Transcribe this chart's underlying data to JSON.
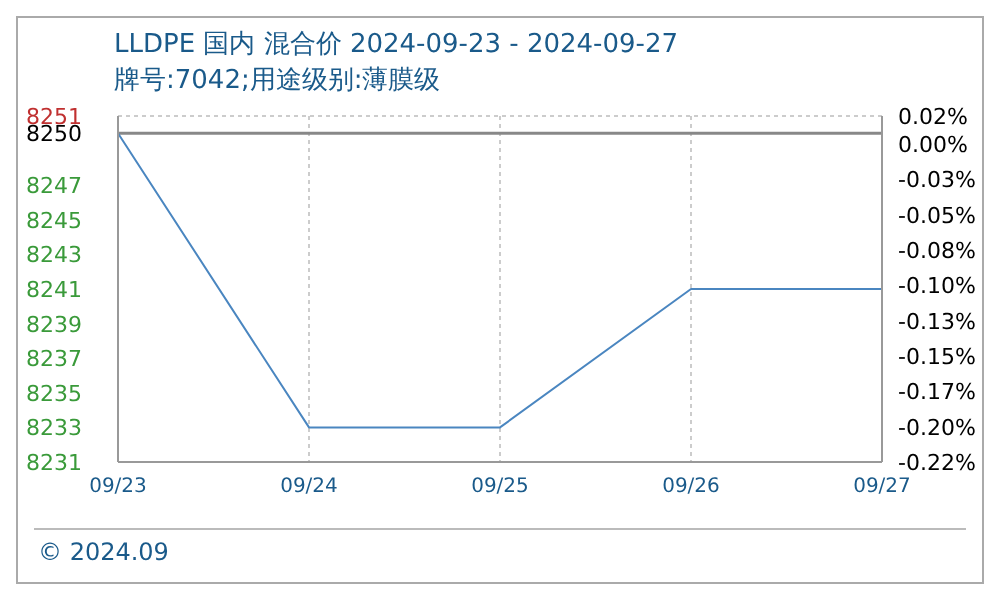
{
  "chart_data": {
    "type": "line",
    "title": "LLDPE 国内 混合价 2024-09-23 - 2024-09-27",
    "subtitle": "牌号:7042;用途级别:薄膜级",
    "categories": [
      "09/23",
      "09/24",
      "09/25",
      "09/26",
      "09/27"
    ],
    "series": [
      {
        "color": "#4a86c0",
        "values": [
          8250,
          8233,
          8233,
          8241,
          8241
        ]
      }
    ],
    "ylim": [
      8231,
      8251
    ],
    "yticks": [
      8251,
      8250,
      8247,
      8245,
      8243,
      8241,
      8239,
      8237,
      8235,
      8233,
      8231
    ],
    "y2lim": [
      -0.225,
      0.02
    ],
    "y2ticks": [
      {
        "value": 0.02,
        "label": "0.02%"
      },
      {
        "value": 0,
        "label": "0.00%"
      },
      {
        "value": -0.025,
        "label": "-0.03%"
      },
      {
        "value": -0.05,
        "label": "-0.05%"
      },
      {
        "value": -0.075,
        "label": "-0.08%"
      },
      {
        "value": -0.1,
        "label": "-0.10%"
      },
      {
        "value": -0.125,
        "label": "-0.13%"
      },
      {
        "value": -0.15,
        "label": "-0.15%"
      },
      {
        "value": -0.175,
        "label": "-0.17%"
      },
      {
        "value": -0.2,
        "label": "-0.20%"
      },
      {
        "value": -0.225,
        "label": "-0.22%"
      }
    ],
    "ref_lines": [
      {
        "axis": "y",
        "value": 8250,
        "color": "#888888"
      }
    ],
    "grid": true,
    "marker": "none",
    "line_style": "solid",
    "annotations": [
      "© 2024.09"
    ]
  }
}
